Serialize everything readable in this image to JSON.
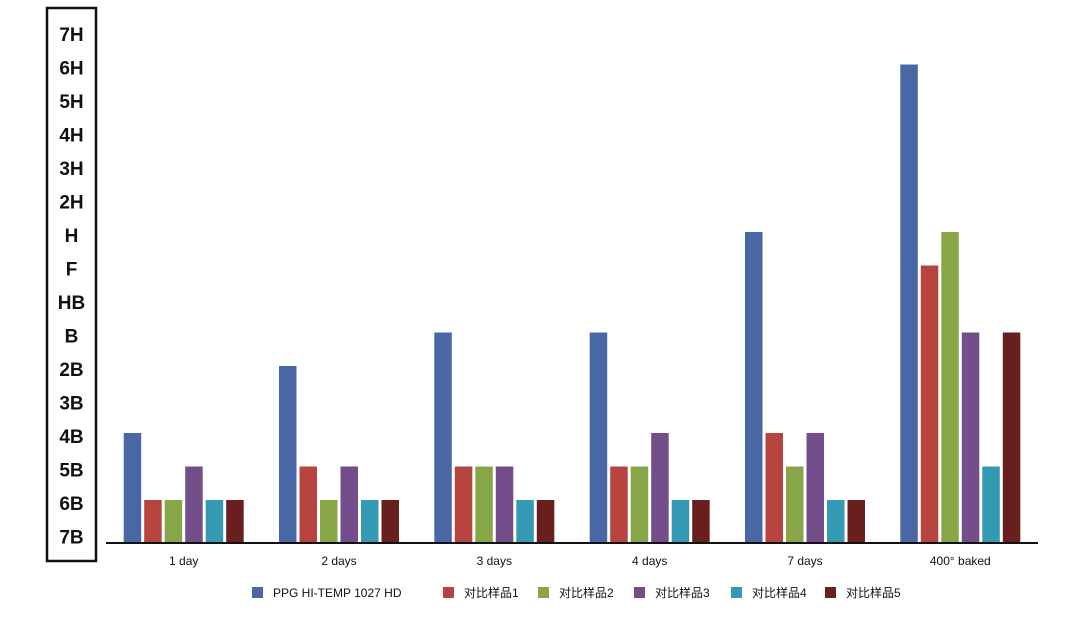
{
  "chart_data": {
    "type": "bar",
    "title": "",
    "xlabel": "",
    "ylabel": "",
    "y_scale": [
      "7B",
      "6B",
      "5B",
      "4B",
      "3B",
      "2B",
      "B",
      "HB",
      "F",
      "H",
      "2H",
      "3H",
      "4H",
      "5H",
      "6H",
      "7H"
    ],
    "ylim": [
      "7B",
      "7H"
    ],
    "categories": [
      "1 day",
      "2 days",
      "3 days",
      "4 days",
      "7 days",
      "400° baked"
    ],
    "series": [
      {
        "name": "PPG HI-TEMP 1027 HD",
        "color": "#4a67a5",
        "values": [
          "4B",
          "2B",
          "B",
          "B",
          "H",
          "6H"
        ]
      },
      {
        "name": "对比样品1",
        "color": "#b84440",
        "values": [
          "6B",
          "5B",
          "5B",
          "5B",
          "4B",
          "F"
        ]
      },
      {
        "name": "对比样品2",
        "color": "#86a648",
        "values": [
          "6B",
          "6B",
          "5B",
          "5B",
          "5B",
          "H"
        ]
      },
      {
        "name": "对比样品3",
        "color": "#744d8b",
        "values": [
          "5B",
          "5B",
          "5B",
          "4B",
          "4B",
          "B"
        ]
      },
      {
        "name": "对比样品4",
        "color": "#3499b3",
        "values": [
          "6B",
          "6B",
          "6B",
          "6B",
          "6B",
          "5B"
        ]
      },
      {
        "name": "对比样品5",
        "color": "#6a1f1f",
        "values": [
          "6B",
          "6B",
          "6B",
          "6B",
          "6B",
          "B"
        ]
      }
    ],
    "legend_position": "bottom",
    "grid": false
  }
}
